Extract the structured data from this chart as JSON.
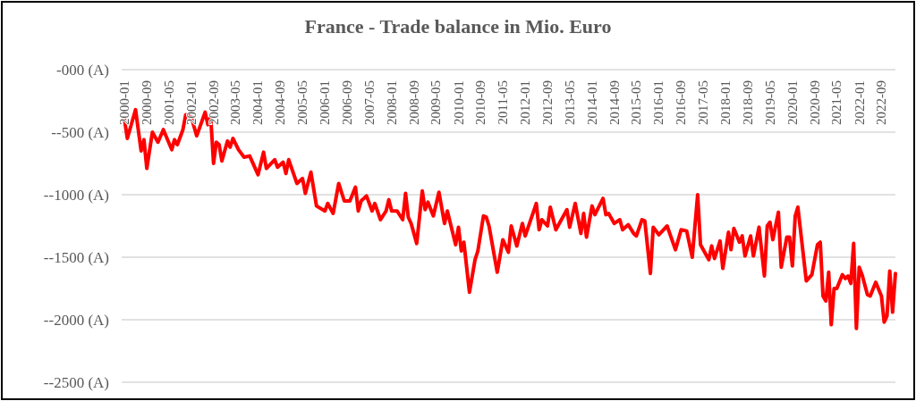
{
  "chart_data": {
    "type": "line",
    "title": "France - Trade balance in Mio. Euro",
    "x": [
      "2000-01",
      "2000-02",
      "2000-05",
      "2000-07",
      "2000-08",
      "2000-09",
      "2000-11",
      "2001-01",
      "2001-03",
      "2001-06",
      "2001-07",
      "2001-08",
      "2001-10",
      "2001-11",
      "2002-01",
      "2002-03",
      "2002-06",
      "2002-07",
      "2002-08",
      "2002-09",
      "2002-10",
      "2002-11",
      "2002-12",
      "2003-02",
      "2003-03",
      "2003-04",
      "2003-06",
      "2003-08",
      "2003-10",
      "2004-01",
      "2004-03",
      "2004-04",
      "2004-07",
      "2004-08",
      "2004-10",
      "2004-11",
      "2004-12",
      "2005-03",
      "2005-05",
      "2005-06",
      "2005-08",
      "2005-10",
      "2006-01",
      "2006-02",
      "2006-04",
      "2006-06",
      "2006-08",
      "2006-10",
      "2006-12",
      "2007-01",
      "2007-02",
      "2007-04",
      "2007-06",
      "2007-07",
      "2007-09",
      "2007-11",
      "2007-12",
      "2008-01",
      "2008-03",
      "2008-05",
      "2008-06",
      "2008-07",
      "2008-08",
      "2008-10",
      "2008-12",
      "2009-01",
      "2009-02",
      "2009-04",
      "2009-06",
      "2009-08",
      "2009-09",
      "2009-12",
      "2010-01",
      "2010-02",
      "2010-03",
      "2010-05",
      "2010-07",
      "2010-08",
      "2010-10",
      "2010-11",
      "2010-12",
      "2011-03",
      "2011-05",
      "2011-07",
      "2011-08",
      "2011-10",
      "2011-12",
      "2012-01",
      "2012-05",
      "2012-06",
      "2012-07",
      "2012-09",
      "2012-10",
      "2012-12",
      "2013-04",
      "2013-05",
      "2013-07",
      "2013-09",
      "2013-10",
      "2013-11",
      "2014-01",
      "2014-02",
      "2014-05",
      "2014-06",
      "2014-07",
      "2014-09",
      "2014-11",
      "2014-12",
      "2015-02",
      "2015-04",
      "2015-05",
      "2015-07",
      "2015-08",
      "2015-10",
      "2015-11",
      "2016-01",
      "2016-04",
      "2016-07",
      "2016-09",
      "2016-11",
      "2017-01",
      "2017-03",
      "2017-04",
      "2017-07",
      "2017-08",
      "2017-09",
      "2017-11",
      "2017-12",
      "2018-02",
      "2018-03",
      "2018-04",
      "2018-06",
      "2018-07",
      "2018-08",
      "2018-10",
      "2018-11",
      "2019-01",
      "2019-03",
      "2019-04",
      "2019-05",
      "2019-06",
      "2019-08",
      "2019-09",
      "2019-11",
      "2019-12",
      "2020-01",
      "2020-02",
      "2020-03",
      "2020-06",
      "2020-08",
      "2020-10",
      "2020-11",
      "2020-12",
      "2021-01",
      "2021-02",
      "2021-03",
      "2021-04",
      "2021-05",
      "2021-07",
      "2021-08",
      "2021-09",
      "2021-10",
      "2021-11",
      "2021-12",
      "2022-01",
      "2022-02",
      "2022-04",
      "2022-05",
      "2022-07",
      "2022-09",
      "2022-10",
      "2022-11",
      "2022-12",
      "2023-01",
      "2023-02"
    ],
    "values": [
      -400,
      -550,
      -320,
      -650,
      -560,
      -790,
      -500,
      -580,
      -480,
      -640,
      -560,
      -600,
      -480,
      -360,
      -380,
      -530,
      -340,
      -440,
      -380,
      -750,
      -580,
      -600,
      -730,
      -570,
      -620,
      -550,
      -640,
      -700,
      -690,
      -840,
      -660,
      -790,
      -720,
      -780,
      -740,
      -830,
      -720,
      -910,
      -870,
      -990,
      -820,
      -1090,
      -1130,
      -1070,
      -1150,
      -910,
      -1050,
      -1050,
      -940,
      -1130,
      -1050,
      -1010,
      -1130,
      -1070,
      -1200,
      -1130,
      -1040,
      -1130,
      -1130,
      -1200,
      -990,
      -1180,
      -1230,
      -1390,
      -970,
      -1120,
      -1060,
      -1170,
      -980,
      -1230,
      -1130,
      -1400,
      -1260,
      -1450,
      -1380,
      -1780,
      -1520,
      -1450,
      -1170,
      -1180,
      -1250,
      -1620,
      -1360,
      -1460,
      -1250,
      -1410,
      -1230,
      -1330,
      -1070,
      -1280,
      -1200,
      -1250,
      -1100,
      -1280,
      -1120,
      -1260,
      -1070,
      -1310,
      -1150,
      -1340,
      -1090,
      -1160,
      -1030,
      -1160,
      -1150,
      -1230,
      -1200,
      -1280,
      -1240,
      -1310,
      -1330,
      -1200,
      -1210,
      -1630,
      -1260,
      -1320,
      -1250,
      -1440,
      -1280,
      -1290,
      -1500,
      -1000,
      -1400,
      -1520,
      -1410,
      -1510,
      -1370,
      -1590,
      -1300,
      -1440,
      -1270,
      -1380,
      -1330,
      -1490,
      -1330,
      -1490,
      -1260,
      -1650,
      -1250,
      -1220,
      -1360,
      -1140,
      -1580,
      -1340,
      -1340,
      -1570,
      -1170,
      -1100,
      -1690,
      -1640,
      -1400,
      -1380,
      -1810,
      -1850,
      -1620,
      -2040,
      -1750,
      -1750,
      -1640,
      -1670,
      -1650,
      -1710,
      -1390,
      -2070,
      -1580,
      -1640,
      -1800,
      -1810,
      -1700,
      -1810,
      -2020,
      -1970,
      -1610,
      -1940,
      -1630
    ],
    "color": "#ff0000",
    "marker": "none",
    "line_style": "solid",
    "grid": "y",
    "xlim": [
      "1999-12",
      "2023-02"
    ],
    "xticks": [
      "2000-01",
      "2000-09",
      "2001-05",
      "2002-01",
      "2002-09",
      "2003-05",
      "2004-01",
      "2004-09",
      "2005-05",
      "2006-01",
      "2006-09",
      "2007-05",
      "2008-01",
      "2008-09",
      "2009-05",
      "2010-01",
      "2010-09",
      "2011-05",
      "2012-01",
      "2012-09",
      "2013-05",
      "2014-01",
      "2014-09",
      "2015-05",
      "2016-01",
      "2016-09",
      "2017-05",
      "2018-01",
      "2018-09",
      "2019-05",
      "2020-01",
      "2020-09",
      "2021-05",
      "2022-01",
      "2022-09"
    ],
    "ylim": [
      -2500,
      0
    ],
    "yticks": [
      {
        "value": 0,
        "label": "-000 (A)"
      },
      {
        "value": -500,
        "label": "--500 (A)"
      },
      {
        "value": -1000,
        "label": "--1000 (A)"
      },
      {
        "value": -1500,
        "label": "--1500 (A)"
      },
      {
        "value": -2000,
        "label": "--2000 (A)"
      },
      {
        "value": -2500,
        "label": "--2500 (A)"
      }
    ]
  }
}
